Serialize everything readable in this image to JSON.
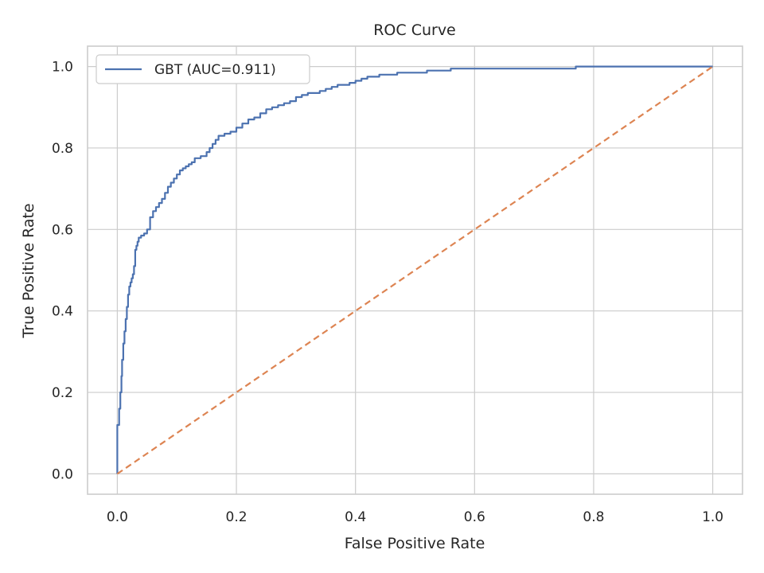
{
  "chart_data": {
    "type": "line",
    "title": "ROC Curve",
    "xlabel": "False Positive Rate",
    "ylabel": "True Positive Rate",
    "xlim": [
      -0.05,
      1.05
    ],
    "ylim": [
      -0.05,
      1.05
    ],
    "xticks": [
      "0.0",
      "0.2",
      "0.4",
      "0.6",
      "0.8",
      "1.0"
    ],
    "yticks": [
      "0.0",
      "0.2",
      "0.4",
      "0.6",
      "0.8",
      "1.0"
    ],
    "grid": true,
    "legend_position": "upper-left",
    "series": [
      {
        "name": "GBT (AUC=0.911)",
        "color": "#4c72b0",
        "style": "solid",
        "x": [
          0.0,
          0.0,
          0.003,
          0.005,
          0.007,
          0.008,
          0.01,
          0.012,
          0.014,
          0.016,
          0.018,
          0.02,
          0.022,
          0.024,
          0.026,
          0.028,
          0.03,
          0.032,
          0.034,
          0.036,
          0.04,
          0.045,
          0.05,
          0.055,
          0.06,
          0.065,
          0.07,
          0.075,
          0.08,
          0.085,
          0.09,
          0.095,
          0.1,
          0.105,
          0.11,
          0.115,
          0.12,
          0.125,
          0.13,
          0.14,
          0.15,
          0.155,
          0.16,
          0.165,
          0.17,
          0.18,
          0.19,
          0.2,
          0.21,
          0.22,
          0.23,
          0.24,
          0.25,
          0.26,
          0.27,
          0.28,
          0.29,
          0.3,
          0.31,
          0.32,
          0.33,
          0.34,
          0.35,
          0.36,
          0.37,
          0.38,
          0.39,
          0.4,
          0.41,
          0.42,
          0.44,
          0.46,
          0.47,
          0.48,
          0.5,
          0.52,
          0.54,
          0.56,
          0.58,
          0.6,
          0.65,
          0.7,
          0.77,
          0.77,
          1.0
        ],
        "y": [
          0.0,
          0.07,
          0.12,
          0.16,
          0.2,
          0.24,
          0.28,
          0.32,
          0.35,
          0.38,
          0.41,
          0.44,
          0.46,
          0.47,
          0.48,
          0.49,
          0.51,
          0.55,
          0.56,
          0.57,
          0.58,
          0.585,
          0.59,
          0.6,
          0.63,
          0.645,
          0.655,
          0.665,
          0.675,
          0.69,
          0.705,
          0.715,
          0.725,
          0.735,
          0.745,
          0.75,
          0.755,
          0.76,
          0.765,
          0.775,
          0.78,
          0.79,
          0.8,
          0.81,
          0.82,
          0.83,
          0.835,
          0.84,
          0.85,
          0.86,
          0.87,
          0.875,
          0.885,
          0.895,
          0.9,
          0.905,
          0.91,
          0.915,
          0.925,
          0.93,
          0.935,
          0.935,
          0.94,
          0.945,
          0.95,
          0.955,
          0.955,
          0.96,
          0.965,
          0.97,
          0.975,
          0.98,
          0.98,
          0.985,
          0.985,
          0.985,
          0.99,
          0.99,
          0.995,
          0.995,
          0.995,
          0.995,
          0.995,
          1.0,
          1.0
        ]
      },
      {
        "color": "#dd8452",
        "style": "dashed",
        "x": [
          0.0,
          1.0
        ],
        "y": [
          0.0,
          1.0
        ]
      }
    ]
  }
}
